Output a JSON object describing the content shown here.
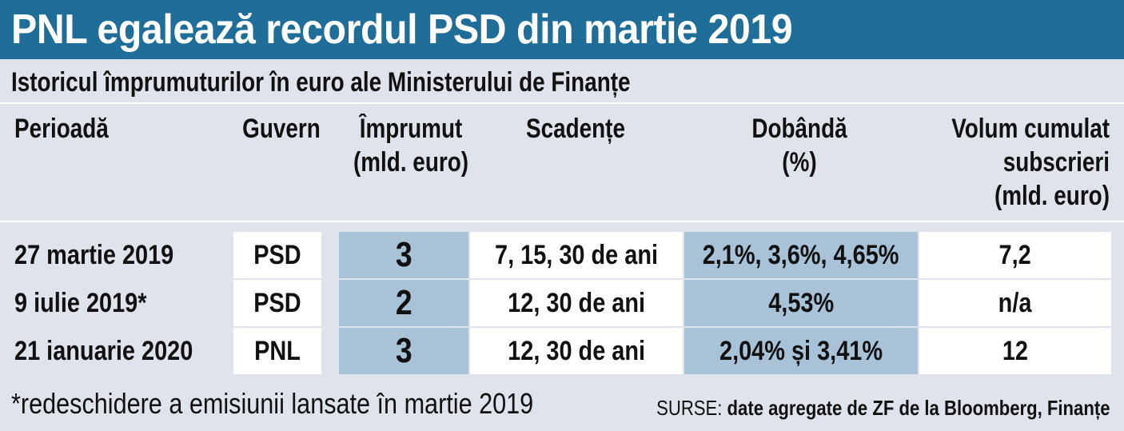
{
  "title": "PNL egalează recordul PSD din martie 2019",
  "subtitle": "Istoricul împrumuturilor în euro ale Ministerului de Finanțe",
  "chart_data": {
    "type": "table",
    "columns": [
      {
        "lines": [
          "Perioadă"
        ]
      },
      {
        "lines": [
          "Guvern"
        ]
      },
      {
        "lines": [
          "Împrumut",
          "(mld. euro)"
        ]
      },
      {
        "lines": [
          "Scadențe"
        ]
      },
      {
        "lines": [
          "Dobândă",
          "(%)"
        ]
      },
      {
        "lines": [
          "Volum cumulat",
          "subscrieri",
          "(mld. euro)"
        ]
      }
    ],
    "rows": [
      [
        "27 martie 2019",
        "PSD",
        "3",
        "7, 15, 30 de ani",
        "2,1%, 3,6%, 4,65%",
        "7,2"
      ],
      [
        "9 iulie 2019*",
        "PSD",
        "2",
        "12, 30 de ani",
        "4,53%",
        "n/a"
      ],
      [
        "21 ianuarie 2020",
        "PNL",
        "3",
        "12, 30 de ani",
        "2,04% și 3,41%",
        "12"
      ]
    ]
  },
  "footnote": "*redeschidere a emisiunii lansate în martie 2019",
  "sources": {
    "label": "SURSE:",
    "text": "date agregate de ZF de la Bloomberg, Finanțe"
  },
  "colors": {
    "title_bar": "#1f6e9a",
    "background": "#dfe3eb",
    "highlight": "#a8c2d8",
    "cell": "#ffffff"
  }
}
